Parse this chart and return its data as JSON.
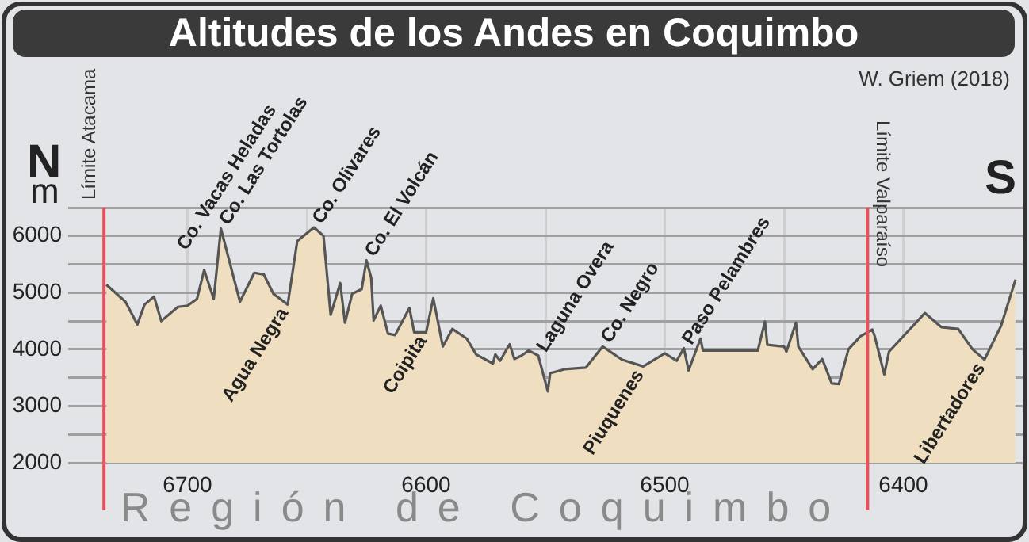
{
  "chart_data": {
    "type": "area",
    "title": "Altitudes de los Andes en Coquimbo",
    "xlabel": "Región de Coquimbo",
    "ylabel": "m",
    "x": [
      6734,
      6726,
      6721,
      6718,
      6714,
      6711,
      6704,
      6700,
      6696,
      6693,
      6689,
      6686,
      6678,
      6672,
      6668,
      6664,
      6658,
      6655,
      6654,
      6647,
      6643,
      6640,
      6636,
      6634,
      6631,
      6627,
      6625,
      6623,
      6622,
      6619,
      6616,
      6613,
      6607,
      6605,
      6600,
      6597,
      6593,
      6589,
      6583,
      6579,
      6572,
      6571,
      6569,
      6565,
      6563,
      6560,
      6557,
      6553,
      6549,
      6548,
      6542,
      6533,
      6526,
      6518,
      6509,
      6500,
      6495,
      6492,
      6490,
      6485,
      6484,
      6461,
      6458,
      6457,
      6450,
      6449,
      6445,
      6444,
      6438,
      6434,
      6430,
      6427,
      6423,
      6418,
      6413,
      6412,
      6408,
      6406,
      6391,
      6384,
      6377,
      6371,
      6366,
      6359,
      6353
    ],
    "series": [
      {
        "color": "#efdfc0",
        "values": [
          5140,
          4840,
          4440,
          4790,
          4930,
          4500,
          4750,
          4770,
          4890,
          5400,
          4890,
          6130,
          4840,
          5350,
          5320,
          4980,
          4790,
          5630,
          5910,
          6150,
          6000,
          4610,
          5170,
          4470,
          4980,
          5060,
          5570,
          5260,
          4510,
          4770,
          4280,
          4250,
          4730,
          4300,
          4300,
          4900,
          4050,
          4360,
          4190,
          3910,
          3750,
          3910,
          3800,
          4090,
          3830,
          3890,
          3980,
          3890,
          3260,
          3580,
          3650,
          3680,
          4050,
          3820,
          3700,
          3930,
          3800,
          4020,
          3630,
          4190,
          3980,
          3980,
          4490,
          4080,
          4050,
          3960,
          4470,
          4050,
          3650,
          3830,
          3400,
          3390,
          4000,
          4230,
          4350,
          4230,
          3560,
          3960,
          4640,
          4390,
          4360,
          4000,
          3820,
          4420,
          5230
        ]
      }
    ],
    "xlim": [
      6750,
      6350
    ],
    "xticks": [
      6700,
      {
        "value": 6650,
        "label": null
      },
      6600,
      {
        "value": 6550,
        "label": null
      },
      6500,
      {
        "value": 6450,
        "label": null
      },
      6400
    ],
    "ylim": [
      2000,
      6500
    ],
    "yticks": [
      2000,
      {
        "value": 2500,
        "label": null
      },
      3000,
      {
        "value": 3500,
        "label": null
      },
      4000,
      {
        "value": 4500,
        "label": null
      },
      5000,
      {
        "value": 5500,
        "label": null
      },
      6000,
      {
        "value": 6500,
        "label": null
      }
    ],
    "grid": true,
    "legend": false,
    "ref_lines": [
      {
        "axis": "x",
        "value": 6735,
        "label": "Límite Atacama",
        "color": "#e8505b"
      },
      {
        "axis": "x",
        "value": 6415,
        "label": "Límite Valparaíso",
        "color": "#e8505b"
      }
    ],
    "annotations": [
      "W. Griem (2018)",
      "N",
      "S",
      {
        "text": "Co. Vacas Heladas",
        "x": 6693,
        "y": 5400
      },
      {
        "text": "Co. Las Tortolas",
        "x": 6686,
        "y": 6130
      },
      {
        "text": "Co. Olivares",
        "x": 6647,
        "y": 6150
      },
      {
        "text": "Agua Negra",
        "x": 6658,
        "y": 4790
      },
      {
        "text": "Co. El Volcán",
        "x": 6625,
        "y": 5570
      },
      {
        "text": "Coipita",
        "x": 6600,
        "y": 4300
      },
      {
        "text": "Laguna Overa",
        "x": 6553,
        "y": 3890
      },
      {
        "text": "Co. Negro",
        "x": 6526,
        "y": 4050
      },
      {
        "text": "Piuquenes",
        "x": 6509,
        "y": 3700
      },
      {
        "text": "Paso Pelambres",
        "x": 6492,
        "y": 4020
      },
      {
        "text": "Libertadores",
        "x": 6366,
        "y": 3820
      }
    ]
  }
}
